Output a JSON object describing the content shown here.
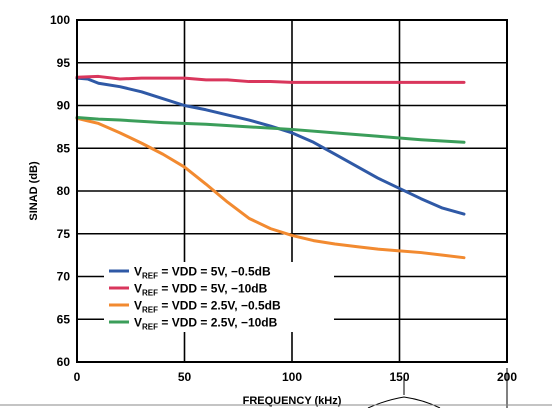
{
  "chart_data": {
    "type": "line",
    "xlabel": "FREQUENCY (kHz)",
    "ylabel": "SINAD (dB)",
    "xlim": [
      0,
      200
    ],
    "ylim": [
      60,
      100
    ],
    "x_ticks": [
      "0",
      "50",
      "100",
      "150",
      "200"
    ],
    "y_ticks": [
      "60",
      "65",
      "70",
      "75",
      "80",
      "85",
      "90",
      "95",
      "100"
    ],
    "grid": true,
    "legend_position": "bottom-left",
    "series": [
      {
        "name": "VREF = VDD = 5V, −0.5dB",
        "legend": {
          "main": "V",
          "sub": "REF",
          "rest": " = VDD = 5V, −0.5dB"
        },
        "color": "#2f59a6",
        "x": [
          0,
          5,
          10,
          20,
          30,
          40,
          50,
          60,
          70,
          80,
          90,
          100,
          110,
          120,
          130,
          140,
          150,
          160,
          170,
          180
        ],
        "y": [
          93.2,
          93.1,
          92.6,
          92.2,
          91.6,
          90.8,
          90.0,
          89.5,
          88.9,
          88.3,
          87.6,
          86.8,
          85.7,
          84.3,
          82.9,
          81.5,
          80.3,
          79.1,
          78.0,
          77.3
        ]
      },
      {
        "name": "VREF = VDD = 5V, −10dB",
        "legend": {
          "main": "V",
          "sub": "REF",
          "rest": " = VDD = 5V, −10dB"
        },
        "color": "#d9365c",
        "x": [
          0,
          10,
          20,
          30,
          40,
          50,
          60,
          70,
          80,
          90,
          100,
          120,
          140,
          160,
          180
        ],
        "y": [
          93.3,
          93.4,
          93.1,
          93.2,
          93.2,
          93.2,
          93.0,
          93.0,
          92.8,
          92.8,
          92.7,
          92.7,
          92.7,
          92.7,
          92.7
        ]
      },
      {
        "name": "VREF = VDD = 2.5V, −0.5dB",
        "legend": {
          "main": "V",
          "sub": "REF",
          "rest": " = VDD = 2.5V, −0.5dB"
        },
        "color": "#f28a30",
        "x": [
          0,
          5,
          10,
          20,
          30,
          40,
          50,
          60,
          70,
          80,
          90,
          100,
          110,
          120,
          130,
          140,
          150,
          160,
          170,
          180
        ],
        "y": [
          88.5,
          88.2,
          87.9,
          86.8,
          85.6,
          84.3,
          82.8,
          80.8,
          78.7,
          76.8,
          75.6,
          74.8,
          74.2,
          73.8,
          73.5,
          73.2,
          73.0,
          72.8,
          72.5,
          72.2
        ]
      },
      {
        "name": "VREF = VDD = 2.5V, −10dB",
        "legend": {
          "main": "V",
          "sub": "REF",
          "rest": " = VDD = 2.5V, −10dB"
        },
        "color": "#3b9e5a",
        "x": [
          0,
          10,
          20,
          40,
          60,
          80,
          100,
          120,
          140,
          160,
          180
        ],
        "y": [
          88.6,
          88.4,
          88.3,
          88.0,
          87.8,
          87.5,
          87.2,
          86.8,
          86.4,
          86.0,
          85.7
        ]
      }
    ]
  }
}
